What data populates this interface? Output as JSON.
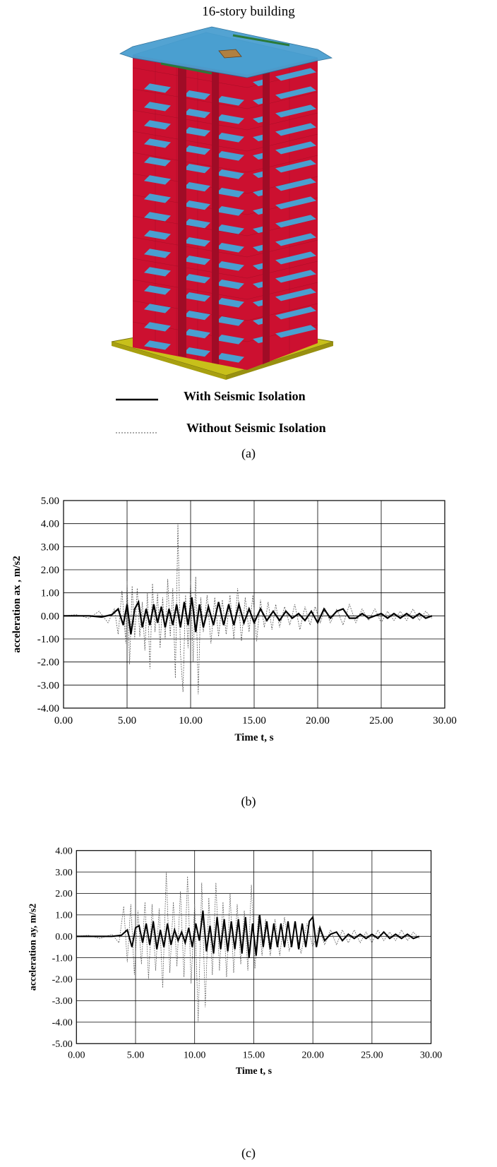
{
  "figure": {
    "title": "16-story building",
    "legend": {
      "with_label": "With Seismic Isolation",
      "without_label": "Without Seismic Isolation"
    },
    "captions": {
      "a": "(a)",
      "b": "(b)",
      "c": "(c)"
    },
    "colors": {
      "facade_red": "#cc1030",
      "slab_blue": "#4a9fd0",
      "base_yellow": "#c8c01a",
      "grid_line": "#000000",
      "series_with": "#000000",
      "series_without": "#555555"
    }
  },
  "chart_data": [
    {
      "type": "line",
      "id": "b",
      "xlabel": "Time t, s",
      "ylabel": "acceleration ax , m/s2",
      "xlim": [
        0,
        30
      ],
      "ylim": [
        -4,
        5
      ],
      "xticks": [
        "0.00",
        "5.00",
        "10.00",
        "15.00",
        "20.00",
        "25.00",
        "30.00"
      ],
      "yticks": [
        "5.00",
        "4.00",
        "3.00",
        "2.00",
        "1.00",
        "0.00",
        "-1.00",
        "-2.00",
        "-3.00",
        "-4.00"
      ],
      "grid": true,
      "series": [
        {
          "name": "Without Seismic Isolation",
          "style": "dashed-thin",
          "x": [
            0.0,
            1.0,
            2.0,
            2.8,
            3.5,
            4.0,
            4.3,
            4.6,
            4.9,
            5.0,
            5.2,
            5.4,
            5.6,
            5.8,
            6.0,
            6.2,
            6.4,
            6.6,
            6.8,
            7.0,
            7.2,
            7.4,
            7.6,
            7.8,
            8.0,
            8.2,
            8.4,
            8.6,
            8.8,
            9.0,
            9.2,
            9.4,
            9.6,
            9.8,
            10.0,
            10.2,
            10.4,
            10.6,
            10.8,
            11.0,
            11.3,
            11.6,
            11.9,
            12.2,
            12.5,
            12.8,
            13.1,
            13.4,
            13.7,
            14.0,
            14.3,
            14.6,
            14.9,
            15.2,
            15.5,
            15.8,
            16.1,
            16.4,
            16.7,
            17.0,
            17.4,
            17.8,
            18.2,
            18.6,
            19.0,
            19.4,
            19.8,
            20.2,
            20.6,
            21.0,
            21.5,
            22.0,
            22.5,
            23.0,
            23.5,
            24.0,
            24.5,
            25.0,
            25.5,
            26.0,
            26.5,
            27.0,
            27.5,
            28.0,
            28.5,
            29.0
          ],
          "values": [
            0.0,
            0.05,
            -0.1,
            0.2,
            -0.3,
            0.3,
            -0.8,
            1.1,
            -1.2,
            1.5,
            -2.1,
            1.3,
            -1.0,
            1.2,
            -0.9,
            0.6,
            -1.5,
            1.0,
            -2.3,
            1.4,
            -0.7,
            1.0,
            -1.4,
            0.8,
            -1.0,
            1.6,
            -0.9,
            1.2,
            -2.7,
            4.0,
            -1.6,
            -3.3,
            0.9,
            -1.4,
            1.5,
            -2.0,
            1.7,
            -3.4,
            0.8,
            -0.7,
            0.9,
            -1.2,
            0.8,
            -0.9,
            0.7,
            -0.8,
            0.9,
            -1.0,
            1.2,
            -1.1,
            0.8,
            -0.7,
            0.9,
            -1.1,
            0.7,
            -0.5,
            0.6,
            -0.6,
            0.5,
            -0.5,
            0.4,
            -0.4,
            0.5,
            -0.6,
            0.4,
            -0.4,
            0.4,
            -0.3,
            0.3,
            -0.3,
            0.3,
            -0.4,
            0.5,
            -0.3,
            0.3,
            -0.2,
            0.3,
            -0.3,
            0.2,
            -0.2,
            0.2,
            -0.2,
            0.3,
            -0.2,
            0.2,
            -0.1
          ]
        },
        {
          "name": "With Seismic Isolation",
          "style": "solid-thick",
          "x": [
            0.0,
            1.0,
            2.0,
            3.0,
            3.8,
            4.3,
            4.7,
            5.0,
            5.3,
            5.6,
            5.9,
            6.2,
            6.5,
            6.8,
            7.1,
            7.4,
            7.7,
            8.0,
            8.3,
            8.6,
            8.9,
            9.2,
            9.5,
            9.8,
            10.1,
            10.4,
            10.7,
            11.0,
            11.4,
            11.8,
            12.2,
            12.6,
            13.0,
            13.4,
            13.8,
            14.2,
            14.6,
            15.0,
            15.5,
            16.0,
            16.5,
            17.0,
            17.5,
            18.0,
            18.5,
            19.0,
            19.5,
            20.0,
            20.5,
            21.0,
            21.5,
            22.0,
            22.5,
            23.0,
            23.5,
            24.0,
            24.5,
            25.0,
            25.5,
            26.0,
            26.5,
            27.0,
            27.5,
            28.0,
            28.5,
            29.0
          ],
          "values": [
            0.0,
            0.0,
            0.0,
            -0.05,
            0.05,
            0.3,
            -0.4,
            0.5,
            -0.8,
            0.3,
            0.6,
            -0.5,
            0.3,
            -0.4,
            0.5,
            -0.3,
            0.4,
            -0.5,
            0.3,
            -0.4,
            0.5,
            -0.5,
            0.6,
            -0.4,
            0.8,
            -0.7,
            0.5,
            -0.5,
            0.4,
            -0.4,
            0.6,
            -0.4,
            0.5,
            -0.4,
            0.5,
            -0.3,
            0.3,
            -0.3,
            0.3,
            -0.2,
            0.2,
            -0.2,
            0.2,
            -0.1,
            0.1,
            -0.2,
            0.2,
            -0.3,
            0.3,
            -0.1,
            0.2,
            0.3,
            -0.1,
            -0.1,
            0.1,
            -0.1,
            0.0,
            0.1,
            -0.1,
            0.1,
            -0.1,
            0.1,
            -0.1,
            0.1,
            -0.1,
            0.0
          ]
        }
      ]
    },
    {
      "type": "line",
      "id": "c",
      "xlabel": "Time t, s",
      "ylabel": "acceleration ay, m/s2",
      "xlim": [
        0,
        30
      ],
      "ylim": [
        -5,
        4
      ],
      "xticks": [
        "0.00",
        "5.00",
        "10.00",
        "15.00",
        "20.00",
        "25.00",
        "30.00"
      ],
      "yticks": [
        "4.00",
        "3.00",
        "2.00",
        "1.00",
        "0.00",
        "-1.00",
        "-2.00",
        "-3.00",
        "-4.00",
        "-5.00"
      ],
      "grid": true,
      "series": [
        {
          "name": "Without Seismic Isolation",
          "style": "dashed-thin",
          "x": [
            0.0,
            1.0,
            2.0,
            3.0,
            3.6,
            4.0,
            4.3,
            4.6,
            4.9,
            5.2,
            5.5,
            5.8,
            6.1,
            6.4,
            6.7,
            7.0,
            7.3,
            7.6,
            7.9,
            8.2,
            8.5,
            8.8,
            9.1,
            9.4,
            9.7,
            10.0,
            10.3,
            10.6,
            10.9,
            11.2,
            11.5,
            11.8,
            12.1,
            12.4,
            12.7,
            13.0,
            13.3,
            13.6,
            13.9,
            14.2,
            14.5,
            14.8,
            15.1,
            15.4,
            15.7,
            16.0,
            16.4,
            16.8,
            17.2,
            17.6,
            18.0,
            18.5,
            19.0,
            19.5,
            20.0,
            20.5,
            21.0,
            21.5,
            22.0,
            22.5,
            23.0,
            23.5,
            24.0,
            24.5,
            25.0,
            25.5,
            26.0,
            26.5,
            27.0,
            27.5,
            28.0,
            28.5,
            29.0
          ],
          "values": [
            0.0,
            0.05,
            -0.1,
            0.1,
            -0.3,
            1.4,
            -1.2,
            1.5,
            -1.8,
            1.2,
            -1.3,
            1.6,
            -2.0,
            1.5,
            -1.6,
            1.3,
            -2.4,
            3.0,
            -1.7,
            1.6,
            -1.4,
            2.1,
            -1.9,
            2.8,
            -2.2,
            1.5,
            -4.0,
            2.5,
            -3.3,
            1.8,
            -1.8,
            2.5,
            -1.6,
            1.6,
            -1.9,
            2.0,
            -1.7,
            1.5,
            -1.3,
            1.2,
            -1.6,
            2.4,
            -1.5,
            1.0,
            -0.9,
            0.8,
            -0.9,
            0.8,
            -0.9,
            0.9,
            -0.7,
            0.5,
            -0.8,
            0.6,
            -0.5,
            0.4,
            -0.4,
            0.3,
            -0.4,
            0.3,
            -0.3,
            0.3,
            -0.3,
            0.2,
            -0.3,
            0.3,
            -0.2,
            0.2,
            -0.2,
            0.3,
            -0.2,
            0.2,
            -0.1
          ]
        },
        {
          "name": "With Seismic Isolation",
          "style": "solid-thick",
          "x": [
            0.0,
            1.0,
            2.0,
            3.0,
            3.8,
            4.3,
            4.7,
            5.0,
            5.3,
            5.6,
            5.9,
            6.2,
            6.5,
            6.8,
            7.1,
            7.4,
            7.7,
            8.0,
            8.3,
            8.6,
            8.9,
            9.2,
            9.5,
            9.8,
            10.1,
            10.4,
            10.7,
            11.0,
            11.3,
            11.6,
            11.9,
            12.2,
            12.5,
            12.8,
            13.1,
            13.4,
            13.7,
            14.0,
            14.3,
            14.6,
            14.9,
            15.2,
            15.5,
            15.8,
            16.1,
            16.4,
            16.7,
            17.0,
            17.3,
            17.6,
            17.9,
            18.2,
            18.5,
            18.8,
            19.1,
            19.4,
            19.7,
            20.0,
            20.3,
            20.6,
            21.0,
            21.5,
            22.0,
            22.5,
            23.0,
            23.5,
            24.0,
            24.5,
            25.0,
            25.5,
            26.0,
            26.5,
            27.0,
            27.5,
            28.0,
            28.5,
            29.0
          ],
          "values": [
            0.0,
            0.0,
            0.0,
            0.0,
            0.05,
            0.3,
            -0.5,
            0.4,
            0.5,
            -0.3,
            0.6,
            -0.4,
            0.7,
            -0.6,
            0.3,
            -0.5,
            0.6,
            -0.4,
            0.3,
            -0.2,
            0.2,
            -0.3,
            0.4,
            -0.5,
            0.6,
            -0.2,
            1.2,
            -0.7,
            0.5,
            -0.8,
            0.9,
            -0.6,
            0.8,
            -0.7,
            0.7,
            -0.6,
            0.8,
            -0.8,
            0.9,
            -1.0,
            0.6,
            -0.9,
            1.0,
            -0.5,
            0.7,
            -0.6,
            0.6,
            -0.5,
            0.6,
            -0.5,
            0.7,
            -0.5,
            0.7,
            -0.6,
            0.6,
            -0.5,
            0.7,
            0.9,
            -0.5,
            0.4,
            -0.2,
            0.1,
            0.2,
            -0.2,
            0.1,
            -0.1,
            0.1,
            -0.1,
            0.1,
            -0.1,
            0.2,
            -0.1,
            0.1,
            -0.1,
            0.1,
            -0.1,
            0.0
          ]
        }
      ]
    }
  ]
}
